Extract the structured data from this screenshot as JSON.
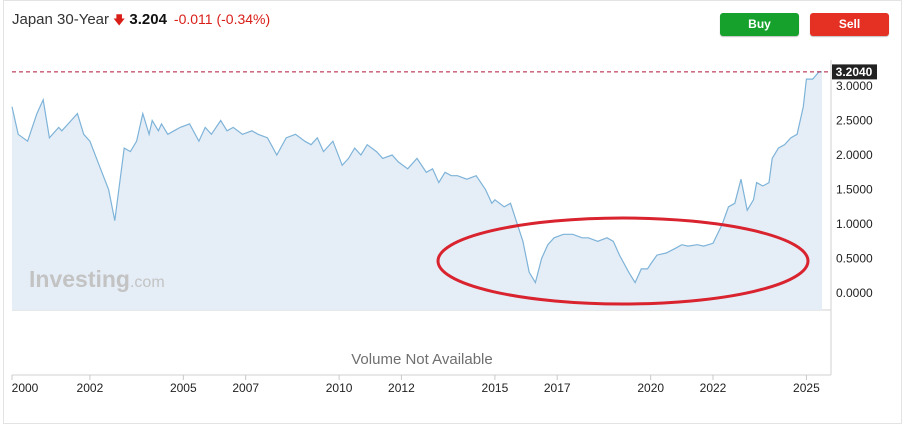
{
  "header": {
    "instrument": "Japan 30-Year",
    "direction_icon": "down-arrow-icon",
    "price": "3.204",
    "change": "-0.011",
    "change_pct": "(-0.34%)",
    "negative_color": "#d91e18"
  },
  "buttons": {
    "buy": "Buy",
    "sell": "Sell",
    "buy_color": "#16a02c",
    "sell_color": "#e53024"
  },
  "watermark": {
    "brand": "Investing",
    "suffix": ".com"
  },
  "volume_text": "Volume Not Available",
  "chart_data": {
    "type": "area",
    "title": "",
    "xlabel": "",
    "ylabel": "",
    "x_tick_labels": [
      "2000",
      "2002",
      "2005",
      "2007",
      "2010",
      "2012",
      "2015",
      "2017",
      "2020",
      "2022",
      "2025"
    ],
    "x_tick_values": [
      1999.5,
      2002.0,
      2005.0,
      2007.0,
      2010.0,
      2012.0,
      2015.0,
      2017.0,
      2020.0,
      2022.0,
      2025.0
    ],
    "y_tick_labels": [
      "3.0000",
      "2.5000",
      "2.0000",
      "1.5000",
      "1.0000",
      "0.5000",
      "0.0000"
    ],
    "y_tick_values": [
      3.0,
      2.5,
      2.0,
      1.5,
      1.0,
      0.5,
      0.0
    ],
    "last_value_label": "3.2040",
    "last_value": 3.204,
    "xlim": [
      1999.5,
      2025.5
    ],
    "grid": false,
    "line_color": "#7eb3d8",
    "fill_color": "#e5eef7",
    "reference_line_color": "#b0163b",
    "series": [
      {
        "x": [
          1999.5,
          1999.7,
          2000.0,
          2000.3,
          2000.5,
          2000.7,
          2001.0,
          2001.1,
          2001.4,
          2001.6,
          2001.8,
          2002.0,
          2002.3,
          2002.6,
          2002.8,
          2003.1,
          2003.3,
          2003.5,
          2003.7,
          2003.9,
          2004.0,
          2004.2,
          2004.3,
          2004.5,
          2004.7,
          2004.9,
          2005.2,
          2005.5,
          2005.7,
          2005.9,
          2006.2,
          2006.4,
          2006.6,
          2006.9,
          2007.2,
          2007.4,
          2007.7,
          2008.0,
          2008.3,
          2008.6,
          2008.9,
          2009.1,
          2009.3,
          2009.5,
          2009.8,
          2010.1,
          2010.3,
          2010.5,
          2010.7,
          2010.9,
          2011.2,
          2011.4,
          2011.7,
          2011.9,
          2012.2,
          2012.5,
          2012.8,
          2013.0,
          2013.2,
          2013.4,
          2013.6,
          2013.8,
          2014.1,
          2014.4,
          2014.7,
          2014.9,
          2015.0,
          2015.3,
          2015.5,
          2015.9,
          2016.1,
          2016.3,
          2016.5,
          2016.7,
          2016.9,
          2017.2,
          2017.5,
          2017.8,
          2018.0,
          2018.3,
          2018.6,
          2018.8,
          2019.0,
          2019.3,
          2019.5,
          2019.7,
          2019.9,
          2020.0,
          2020.2,
          2020.5,
          2020.8,
          2021.0,
          2021.2,
          2021.5,
          2021.7,
          2022.0,
          2022.3,
          2022.5,
          2022.7,
          2022.9,
          2023.1,
          2023.3,
          2023.4,
          2023.6,
          2023.8,
          2023.9,
          2024.1,
          2024.3,
          2024.5,
          2024.7,
          2024.9,
          2025.0,
          2025.2,
          2025.4,
          2025.5
        ],
        "values": [
          2.7,
          2.3,
          2.2,
          2.6,
          2.8,
          2.25,
          2.4,
          2.35,
          2.5,
          2.6,
          2.3,
          2.2,
          1.85,
          1.5,
          1.05,
          2.1,
          2.05,
          2.2,
          2.6,
          2.3,
          2.5,
          2.35,
          2.45,
          2.3,
          2.35,
          2.4,
          2.45,
          2.2,
          2.4,
          2.3,
          2.5,
          2.35,
          2.4,
          2.3,
          2.35,
          2.3,
          2.25,
          2.0,
          2.25,
          2.3,
          2.2,
          2.15,
          2.25,
          2.05,
          2.2,
          1.85,
          1.95,
          2.1,
          2.0,
          2.15,
          2.05,
          1.95,
          2.0,
          1.9,
          1.8,
          1.95,
          1.75,
          1.8,
          1.6,
          1.75,
          1.7,
          1.7,
          1.65,
          1.7,
          1.5,
          1.3,
          1.35,
          1.25,
          1.3,
          0.75,
          0.3,
          0.15,
          0.5,
          0.7,
          0.8,
          0.85,
          0.85,
          0.8,
          0.8,
          0.75,
          0.8,
          0.75,
          0.55,
          0.3,
          0.15,
          0.35,
          0.35,
          0.42,
          0.55,
          0.58,
          0.65,
          0.7,
          0.68,
          0.7,
          0.68,
          0.72,
          1.0,
          1.25,
          1.3,
          1.65,
          1.2,
          1.35,
          1.6,
          1.55,
          1.6,
          1.95,
          2.1,
          2.15,
          2.25,
          2.3,
          2.7,
          3.1,
          3.1,
          3.204,
          3.204
        ]
      }
    ]
  },
  "annotation": {
    "shape": "ellipse",
    "color": "#d9232e"
  }
}
